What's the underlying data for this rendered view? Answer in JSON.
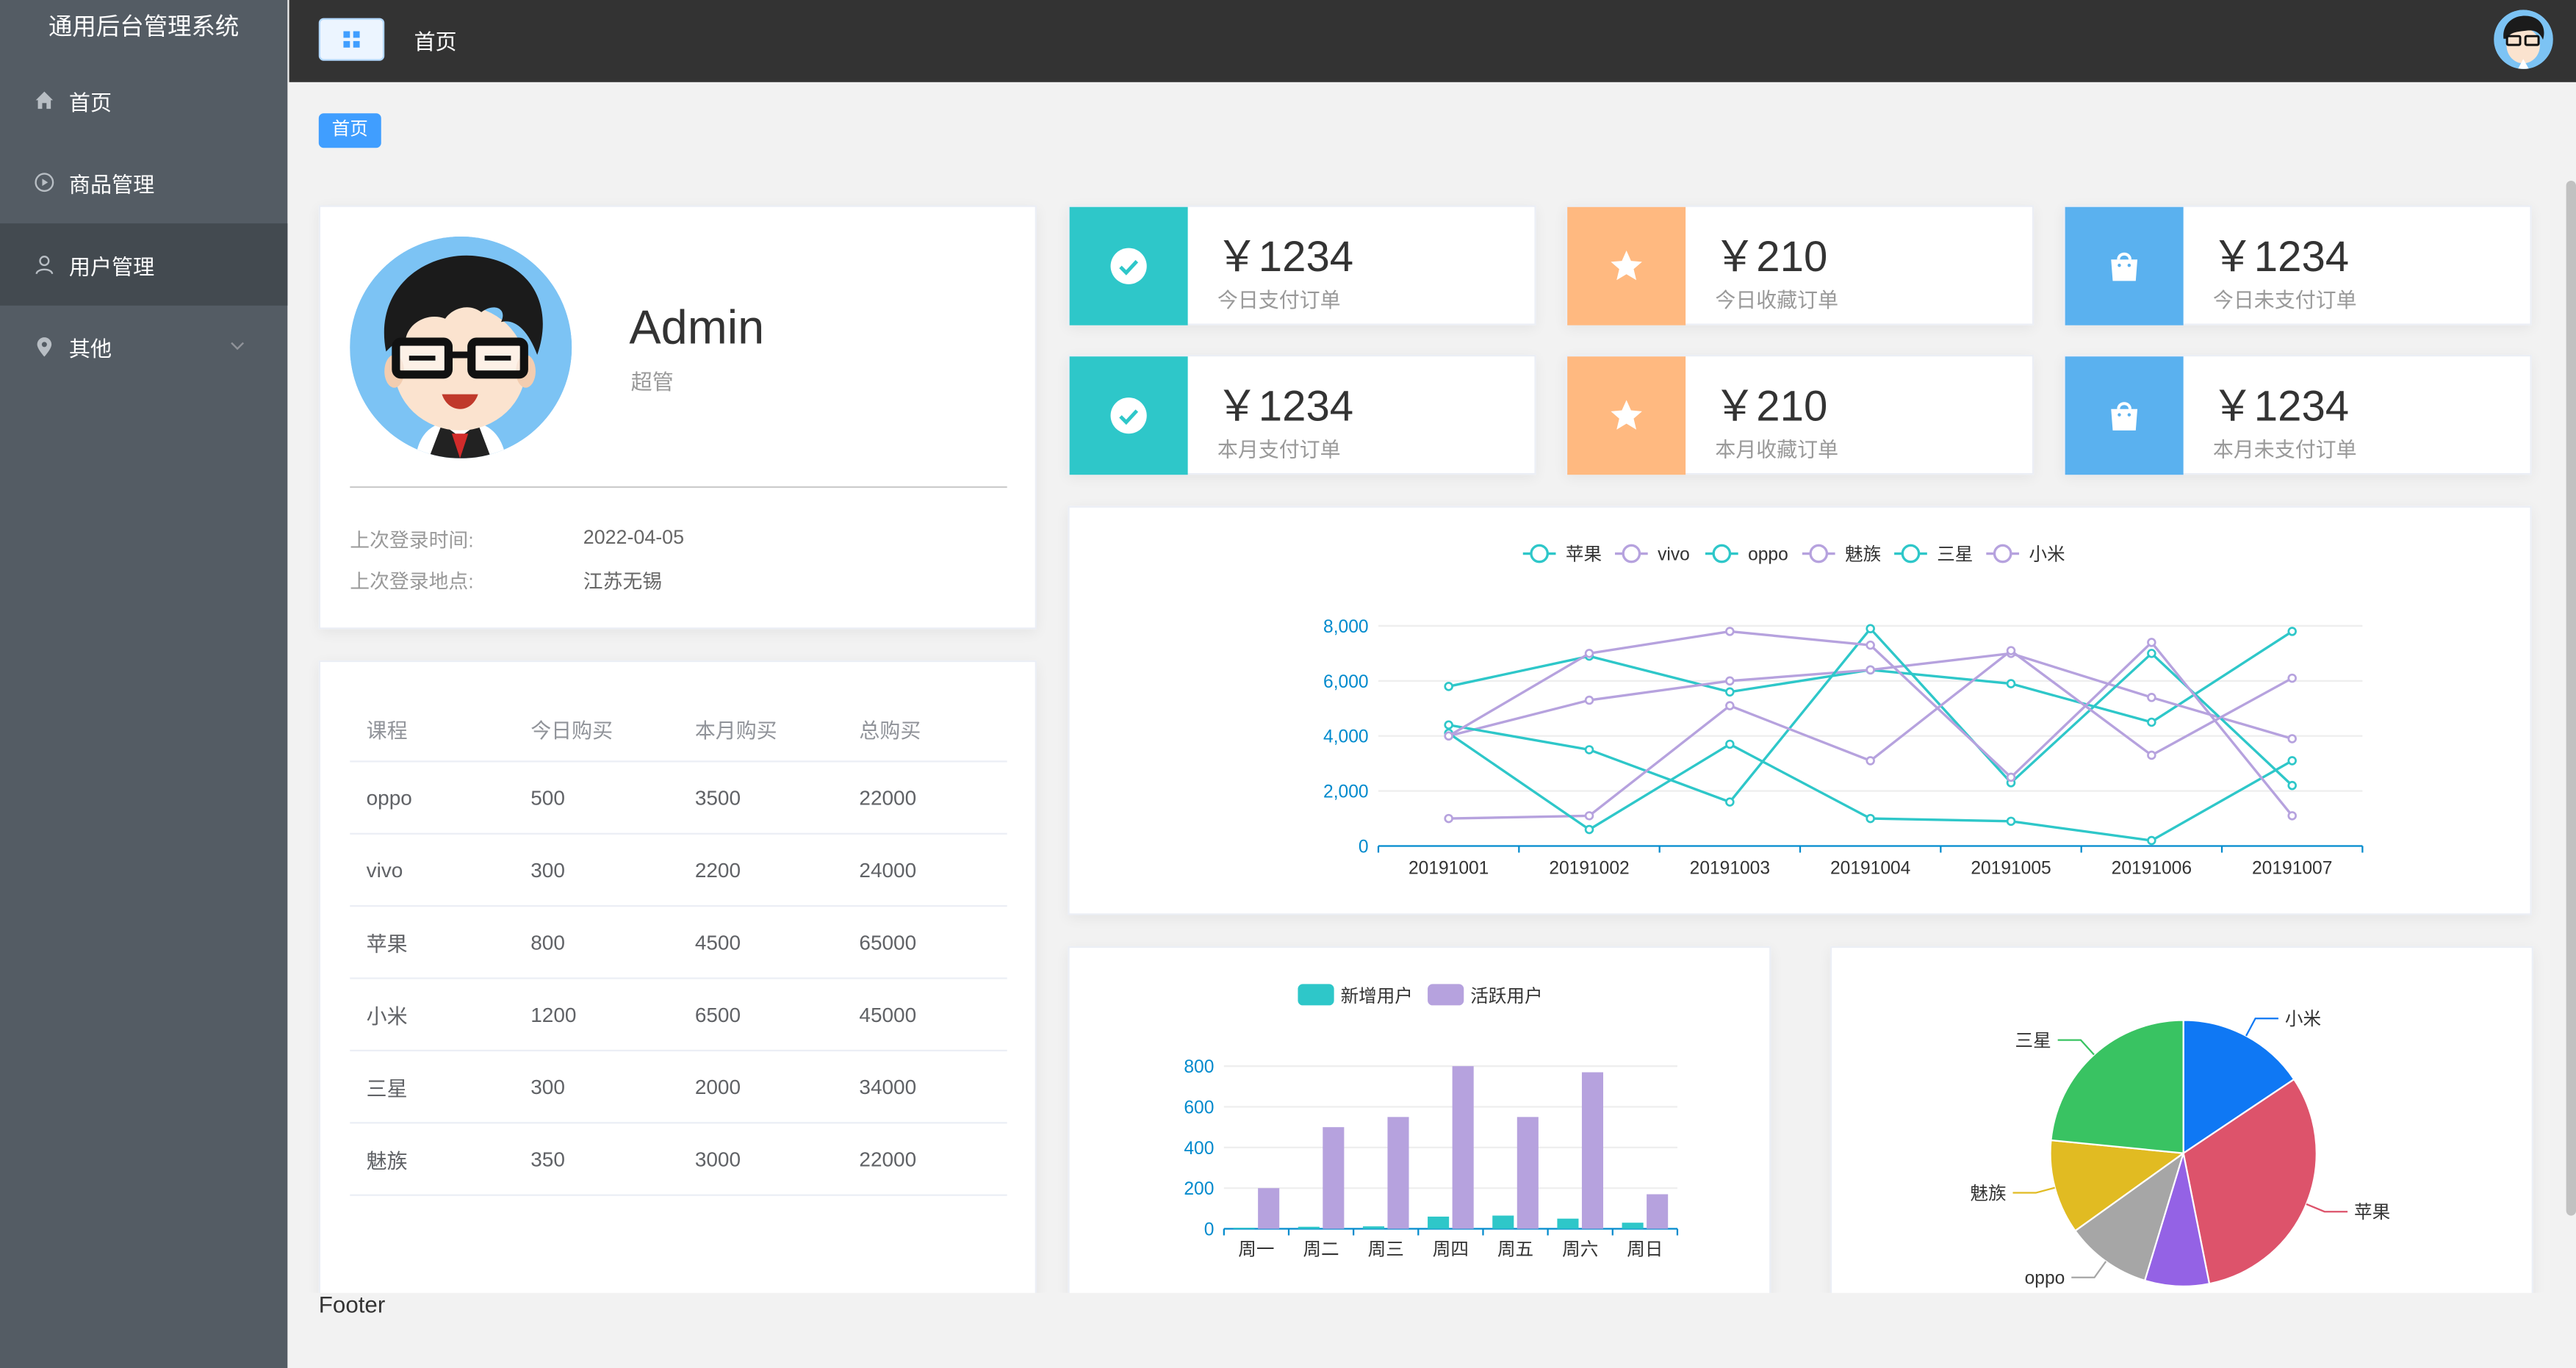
{
  "app": {
    "title": "通用后台管理系统"
  },
  "sidebar": {
    "items": [
      {
        "label": "首页",
        "icon": "home-icon"
      },
      {
        "label": "商品管理",
        "icon": "video-play-icon"
      },
      {
        "label": "用户管理",
        "icon": "user-icon",
        "active": true
      },
      {
        "label": "其他",
        "icon": "location-icon",
        "expandable": true
      }
    ]
  },
  "header": {
    "title": "首页"
  },
  "breadcrumb": {
    "tag": "首页"
  },
  "user": {
    "name": "Admin",
    "role": "超管",
    "last_login_time_label": "上次登录时间:",
    "last_login_time": "2022-04-05",
    "last_login_place_label": "上次登录地点:",
    "last_login_place": "江苏无锡"
  },
  "table": {
    "headers": [
      "课程",
      "今日购买",
      "本月购买",
      "总购买"
    ],
    "rows": [
      [
        "oppo",
        "500",
        "3500",
        "22000"
      ],
      [
        "vivo",
        "300",
        "2200",
        "24000"
      ],
      [
        "苹果",
        "800",
        "4500",
        "65000"
      ],
      [
        "小米",
        "1200",
        "6500",
        "45000"
      ],
      [
        "三星",
        "300",
        "2000",
        "34000"
      ],
      [
        "魅族",
        "350",
        "3000",
        "22000"
      ]
    ]
  },
  "stats": [
    {
      "value": "￥1234",
      "label": "今日支付订单",
      "color": "#2ec7c9",
      "icon": "check-circle-icon"
    },
    {
      "value": "￥210",
      "label": "今日收藏订单",
      "color": "#ffb980",
      "icon": "star-icon"
    },
    {
      "value": "￥1234",
      "label": "今日未支付订单",
      "color": "#5ab1ef",
      "icon": "shopping-bag-icon"
    },
    {
      "value": "￥1234",
      "label": "本月支付订单",
      "color": "#2ec7c9",
      "icon": "check-circle-icon"
    },
    {
      "value": "￥210",
      "label": "本月收藏订单",
      "color": "#ffb980",
      "icon": "star-icon"
    },
    {
      "value": "￥1234",
      "label": "本月未支付订单",
      "color": "#5ab1ef",
      "icon": "shopping-bag-icon"
    }
  ],
  "chart_data": [
    {
      "type": "line",
      "x": [
        "20191001",
        "20191002",
        "20191003",
        "20191004",
        "20191005",
        "20191006",
        "20191007"
      ],
      "ylim": [
        0,
        8000
      ],
      "yticks": [
        "0",
        "2,000",
        "4,000",
        "6,000",
        "8,000"
      ],
      "legend_position": "top",
      "series": [
        {
          "name": "苹果",
          "color": "#2ec7c9",
          "values": [
            5800,
            6900,
            5600,
            6400,
            5900,
            4500,
            7800
          ]
        },
        {
          "name": "vivo",
          "color": "#b6a2de",
          "values": [
            4000,
            5300,
            6000,
            6400,
            7000,
            5400,
            3900
          ]
        },
        {
          "name": "oppo",
          "color": "#2ec7c9",
          "values": [
            4400,
            3500,
            1600,
            7900,
            2300,
            7000,
            2200
          ]
        },
        {
          "name": "魅族",
          "color": "#b6a2de",
          "values": [
            1000,
            1100,
            5100,
            3100,
            7100,
            3300,
            6100
          ]
        },
        {
          "name": "三星",
          "color": "#2ec7c9",
          "values": [
            4100,
            600,
            3700,
            1000,
            900,
            200,
            3100
          ]
        },
        {
          "name": "小米",
          "color": "#b6a2de",
          "values": [
            4000,
            7000,
            7800,
            7300,
            2500,
            7400,
            1100
          ]
        }
      ]
    },
    {
      "type": "bar",
      "categories": [
        "周一",
        "周二",
        "周三",
        "周四",
        "周五",
        "周六",
        "周日"
      ],
      "ylim": [
        0,
        800
      ],
      "yticks": [
        "0",
        "200",
        "400",
        "600",
        "800"
      ],
      "legend_position": "top",
      "series": [
        {
          "name": "新增用户",
          "color": "#2ec7c9",
          "values": [
            5,
            10,
            12,
            60,
            65,
            50,
            30
          ]
        },
        {
          "name": "活跃用户",
          "color": "#b6a2de",
          "values": [
            200,
            500,
            550,
            800,
            550,
            770,
            170
          ]
        }
      ]
    },
    {
      "type": "pie",
      "slices": [
        {
          "name": "小米",
          "value": 2999,
          "color": "#0f78f4"
        },
        {
          "name": "苹果",
          "value": 5999,
          "color": "#dd536b"
        },
        {
          "name": "vivo",
          "value": 1500,
          "color": "#9462e5"
        },
        {
          "name": "oppo",
          "value": 1999,
          "color": "#a6a6a6"
        },
        {
          "name": "魅族",
          "value": 2200,
          "color": "#e1bb22"
        },
        {
          "name": "三星",
          "value": 4500,
          "color": "#39c362"
        }
      ],
      "visible_labels": [
        "小米",
        "苹果",
        "oppo",
        "魅族",
        "三星"
      ]
    }
  ],
  "footer": {
    "text": "Footer"
  }
}
